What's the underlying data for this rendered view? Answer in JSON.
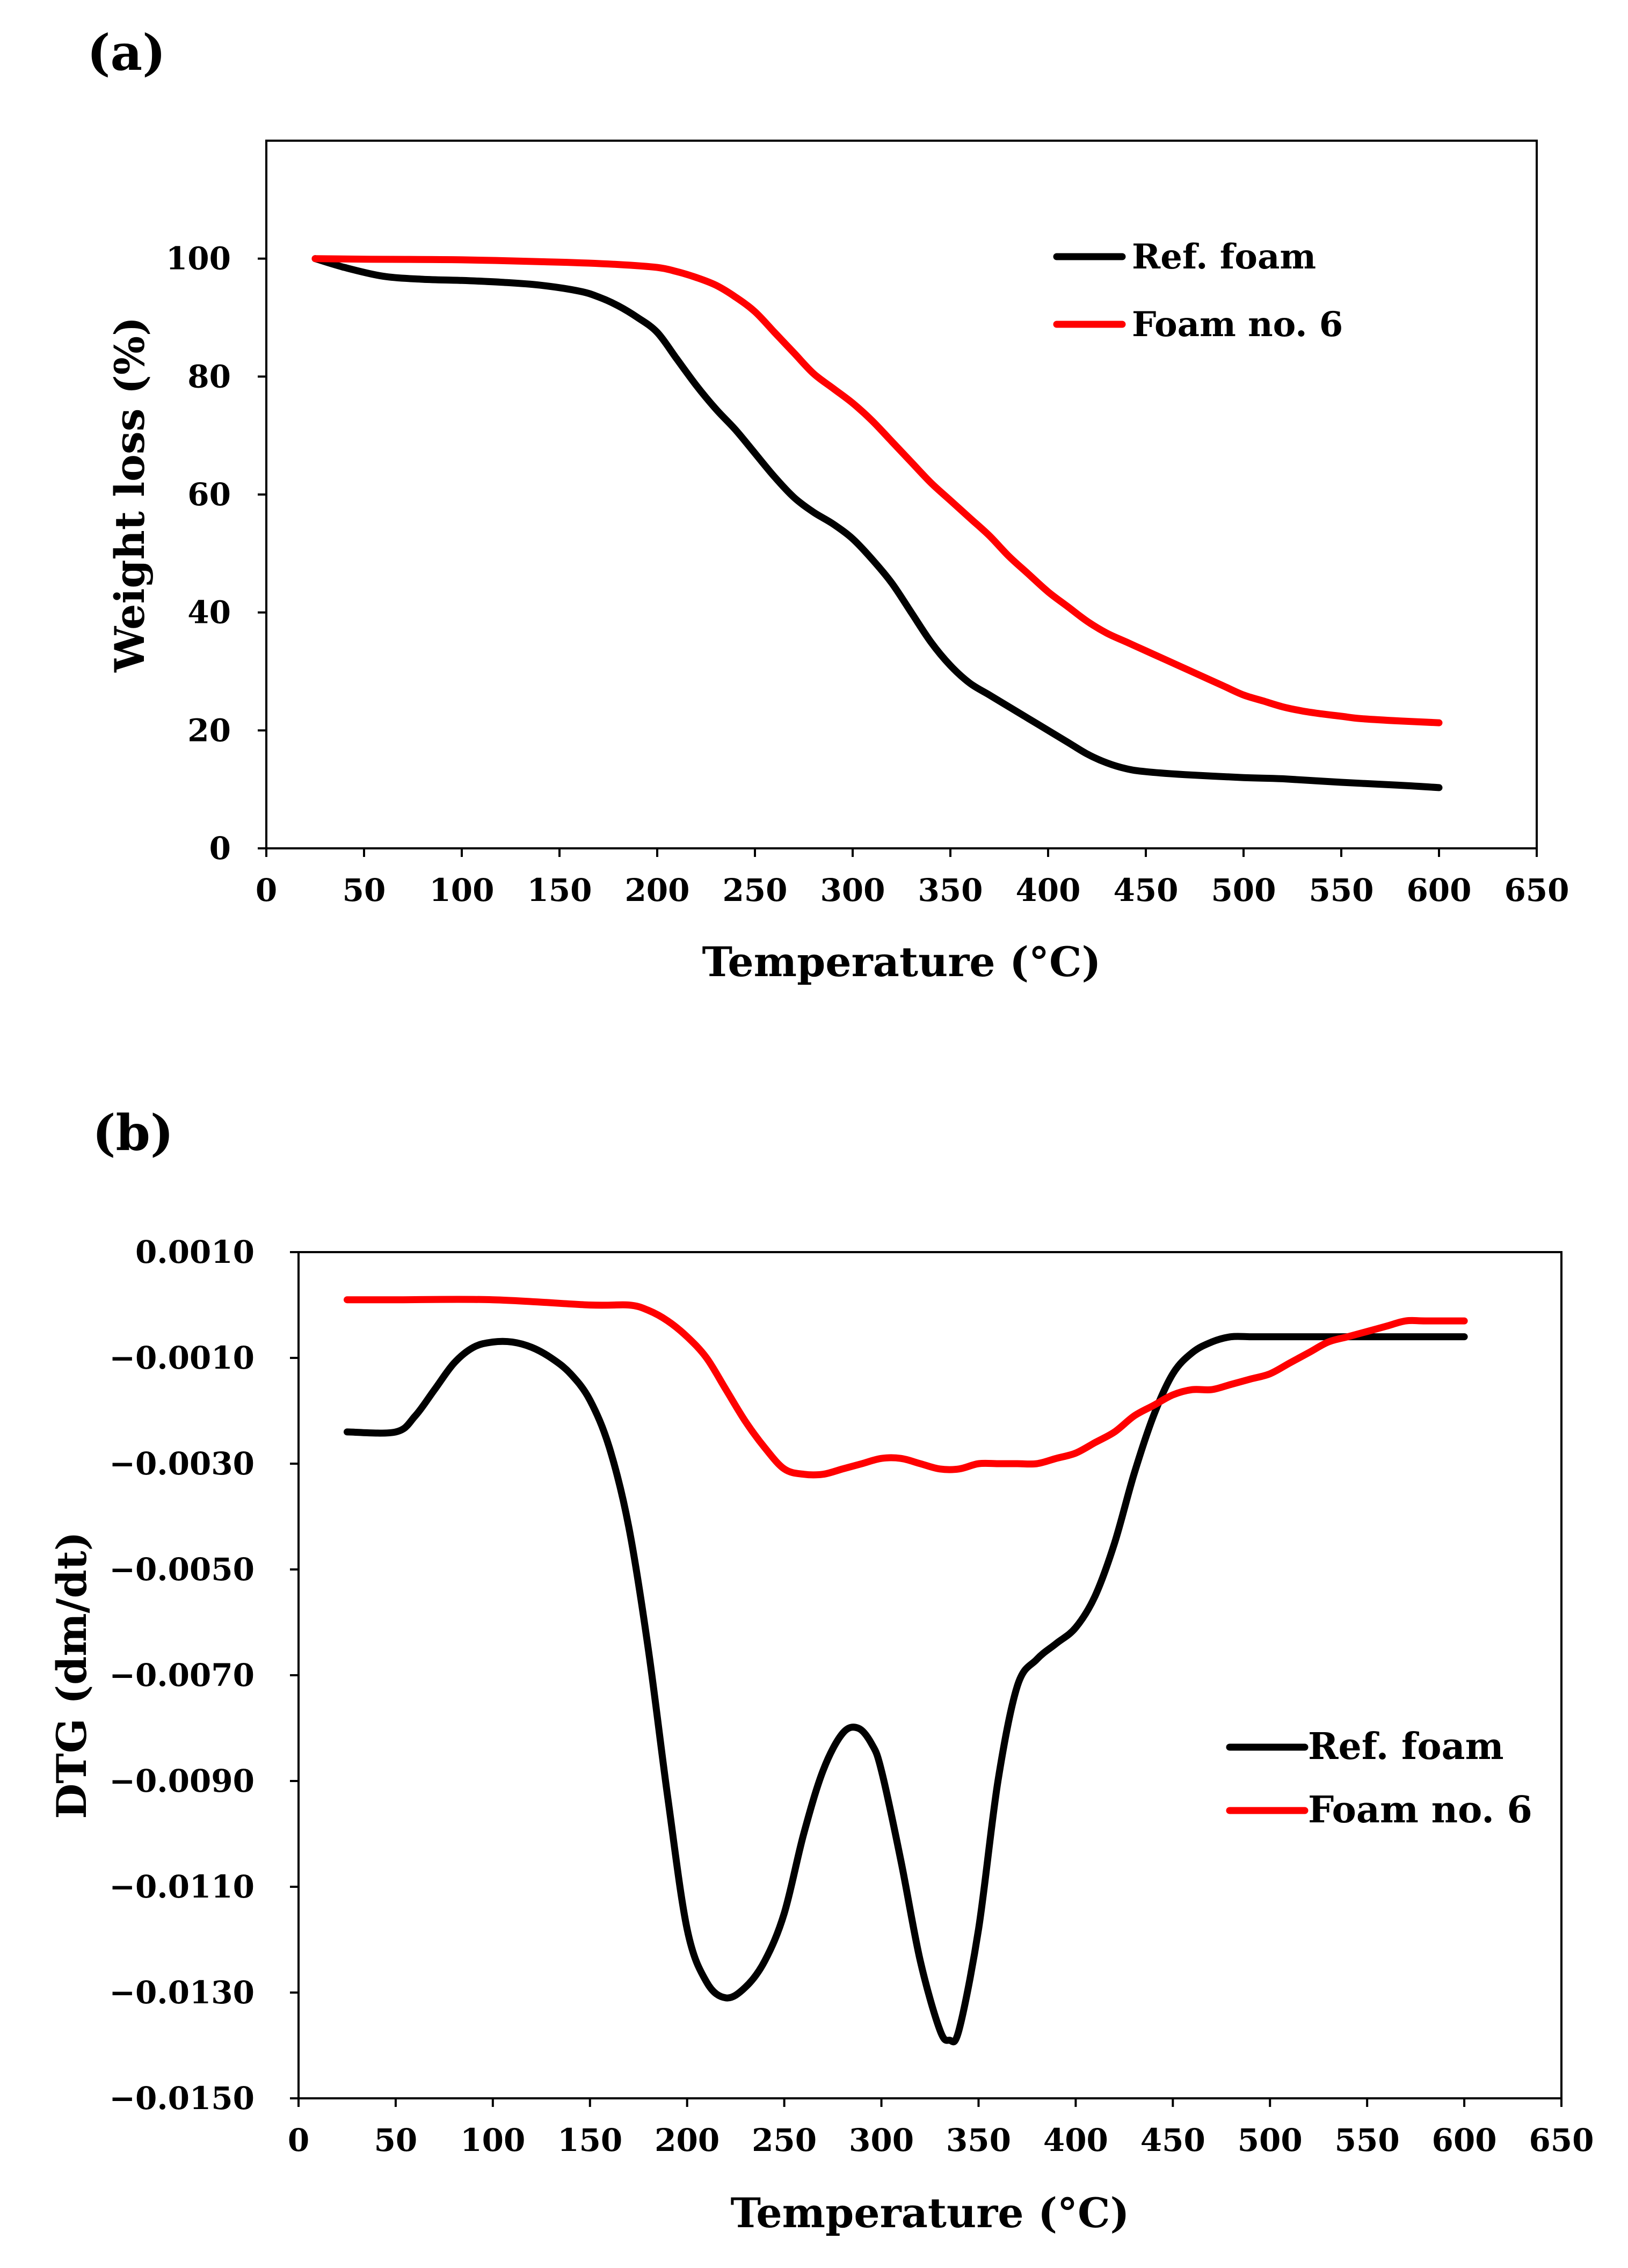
{
  "panels": [
    {
      "label": "(a)",
      "chart_data": {
        "type": "line",
        "title": "",
        "xlabel": "Temperature (°C)",
        "ylabel": "Weight loss (%)",
        "xlim": [
          0,
          650
        ],
        "ylim": [
          0,
          120
        ],
        "xticks": [
          0,
          50,
          100,
          150,
          200,
          250,
          300,
          350,
          400,
          450,
          500,
          550,
          600,
          650
        ],
        "yticks": [
          0,
          20,
          40,
          60,
          80,
          100
        ],
        "xtick_labels": [
          "0",
          "50",
          "100",
          "150",
          "200",
          "250",
          "300",
          "350",
          "400",
          "450",
          "500",
          "550",
          "600",
          "650"
        ],
        "ytick_labels": [
          "0",
          "20",
          "40",
          "60",
          "80",
          "100"
        ],
        "grid": false,
        "legend_position": "top-right",
        "series": [
          {
            "name": "Ref. foam",
            "color": "#000000",
            "x": [
              25,
              40,
              60,
              80,
              100,
              120,
              140,
              160,
              170,
              180,
              190,
              200,
              210,
              220,
              230,
              240,
              250,
              260,
              270,
              280,
              290,
              300,
              310,
              320,
              330,
              340,
              350,
              360,
              370,
              380,
              390,
              400,
              410,
              420,
              430,
              440,
              450,
              470,
              500,
              520,
              550,
              580,
              600
            ],
            "y": [
              100,
              98.5,
              97,
              96.5,
              96.3,
              96,
              95.5,
              94.5,
              93.5,
              92,
              90,
              87.5,
              83,
              78.5,
              74.5,
              71,
              67,
              63,
              59.5,
              57,
              55,
              52.5,
              49,
              45,
              40,
              35,
              31,
              28,
              26,
              24,
              22,
              20,
              18,
              16,
              14.5,
              13.5,
              13,
              12.5,
              12,
              11.8,
              11.2,
              10.7,
              10.3
            ]
          },
          {
            "name": "Foam no. 6",
            "color": "#ff0000",
            "x": [
              25,
              50,
              100,
              150,
              180,
              200,
              210,
              220,
              230,
              240,
              250,
              260,
              270,
              280,
              290,
              300,
              310,
              320,
              330,
              340,
              350,
              360,
              370,
              380,
              390,
              400,
              410,
              420,
              430,
              440,
              450,
              460,
              470,
              480,
              490,
              500,
              510,
              520,
              530,
              540,
              550,
              560,
              580,
              600
            ],
            "y": [
              100,
              99.9,
              99.8,
              99.4,
              99,
              98.5,
              97.8,
              96.8,
              95.5,
              93.5,
              91,
              87.5,
              84,
              80.5,
              78,
              75.5,
              72.5,
              69,
              65.5,
              62,
              59,
              56,
              53,
              49.5,
              46.5,
              43.5,
              41,
              38.5,
              36.5,
              35,
              33.5,
              32,
              30.5,
              29,
              27.5,
              26,
              25,
              24,
              23.3,
              22.8,
              22.4,
              22,
              21.6,
              21.3
            ]
          }
        ]
      }
    },
    {
      "label": "(b)",
      "chart_data": {
        "type": "line",
        "title": "",
        "xlabel": "Temperature (°C)",
        "ylabel": "DTG (dm/dt)",
        "xlim": [
          0,
          650
        ],
        "ylim": [
          -0.015,
          0.001
        ],
        "xticks": [
          0,
          50,
          100,
          150,
          200,
          250,
          300,
          350,
          400,
          450,
          500,
          550,
          600,
          650
        ],
        "yticks": [
          0.001,
          -0.001,
          -0.003,
          -0.005,
          -0.007,
          -0.009,
          -0.011,
          -0.013,
          -0.015
        ],
        "xtick_labels": [
          "0",
          "50",
          "100",
          "150",
          "200",
          "250",
          "300",
          "350",
          "400",
          "450",
          "500",
          "550",
          "600",
          "650"
        ],
        "ytick_labels": [
          "0.0010",
          "−0.0010",
          "−0.0030",
          "−0.0050",
          "−0.0070",
          "−0.0090",
          "−0.0110",
          "−0.0130",
          "−0.0150"
        ],
        "grid": false,
        "legend_position": "middle-right",
        "series": [
          {
            "name": "Ref. foam",
            "color": "#000000",
            "x": [
              25,
              50,
              60,
              70,
              80,
              90,
              100,
              110,
              120,
              130,
              140,
              150,
              160,
              170,
              180,
              190,
              200,
              210,
              220,
              230,
              240,
              250,
              260,
              270,
              280,
              288,
              295,
              300,
              310,
              320,
              330,
              335,
              340,
              350,
              360,
              370,
              380,
              390,
              400,
              410,
              420,
              430,
              440,
              450,
              460,
              470,
              480,
              490,
              500,
              550,
              600
            ],
            "y": [
              -0.0024,
              -0.0024,
              -0.0021,
              -0.0016,
              -0.0011,
              -0.0008,
              -0.0007,
              -0.0007,
              -0.0008,
              -0.001,
              -0.0013,
              -0.0018,
              -0.0027,
              -0.0042,
              -0.0065,
              -0.0093,
              -0.0118,
              -0.0128,
              -0.0131,
              -0.0129,
              -0.0124,
              -0.0115,
              -0.01,
              -0.0088,
              -0.0081,
              -0.008,
              -0.0083,
              -0.0088,
              -0.0105,
              -0.0124,
              -0.0137,
              -0.0139,
              -0.0137,
              -0.0118,
              -0.009,
              -0.0072,
              -0.0067,
              -0.0064,
              -0.0061,
              -0.0055,
              -0.0045,
              -0.0032,
              -0.0021,
              -0.0013,
              -0.0009,
              -0.0007,
              -0.0006,
              -0.0006,
              -0.0006,
              -0.0006,
              -0.0006
            ]
          },
          {
            "name": "Foam no. 6",
            "color": "#ff0000",
            "x": [
              25,
              50,
              100,
              150,
              170,
              180,
              190,
              200,
              210,
              220,
              230,
              240,
              250,
              260,
              270,
              280,
              290,
              300,
              310,
              320,
              330,
              340,
              350,
              360,
              370,
              380,
              390,
              400,
              410,
              420,
              430,
              440,
              450,
              460,
              470,
              480,
              490,
              500,
              510,
              520,
              530,
              540,
              550,
              560,
              570,
              580,
              600
            ],
            "y": [
              0.0001,
              0.0001,
              0.0001,
              0,
              0,
              -0.0001,
              -0.0003,
              -0.0006,
              -0.001,
              -0.0016,
              -0.0022,
              -0.0027,
              -0.0031,
              -0.0032,
              -0.0032,
              -0.0031,
              -0.003,
              -0.0029,
              -0.0029,
              -0.003,
              -0.0031,
              -0.0031,
              -0.003,
              -0.003,
              -0.003,
              -0.003,
              -0.0029,
              -0.0028,
              -0.0026,
              -0.0024,
              -0.0021,
              -0.0019,
              -0.0017,
              -0.0016,
              -0.0016,
              -0.0015,
              -0.0014,
              -0.0013,
              -0.0011,
              -0.0009,
              -0.0007,
              -0.0006,
              -0.0005,
              -0.0004,
              -0.0003,
              -0.0003,
              -0.0003
            ]
          }
        ]
      }
    }
  ]
}
